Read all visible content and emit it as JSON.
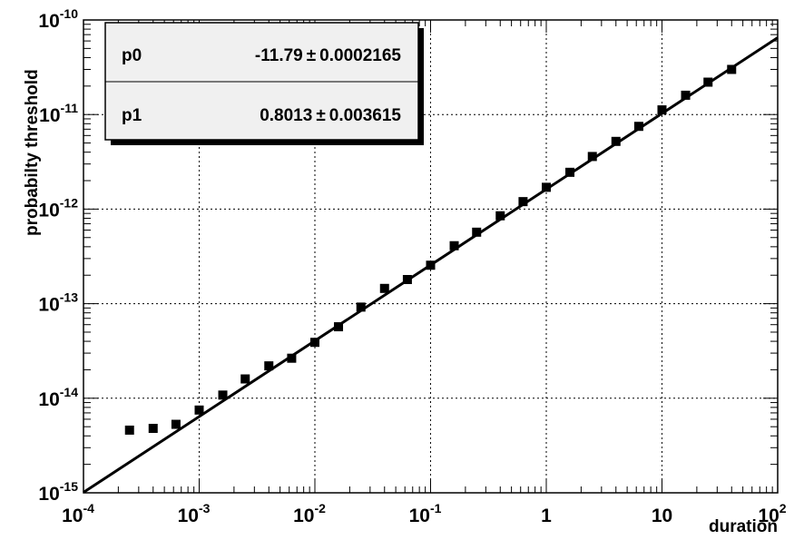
{
  "chart_data": {
    "type": "scatter",
    "xlabel": "duration",
    "ylabel": "probabilty threshold",
    "x_scale": "log",
    "y_scale": "log",
    "xlim": [
      0.0001,
      100
    ],
    "ylim": [
      1e-15,
      1e-10
    ],
    "grid": true,
    "x_ticks": [
      {
        "base": "10",
        "exp": "-4",
        "value": 0.0001
      },
      {
        "base": "10",
        "exp": "-3",
        "value": 0.001
      },
      {
        "base": "10",
        "exp": "-2",
        "value": 0.01
      },
      {
        "base": "10",
        "exp": "-1",
        "value": 0.1
      },
      {
        "base": "1",
        "exp": "",
        "value": 1
      },
      {
        "base": "10",
        "exp": "",
        "value": 10
      },
      {
        "base": "10",
        "exp": "2",
        "value": 100
      }
    ],
    "y_ticks": [
      {
        "base": "10",
        "exp": "-15",
        "value": 1e-15
      },
      {
        "base": "10",
        "exp": "-14",
        "value": 1e-14
      },
      {
        "base": "10",
        "exp": "-13",
        "value": 1e-13
      },
      {
        "base": "10",
        "exp": "-12",
        "value": 1e-12
      },
      {
        "base": "10",
        "exp": "-11",
        "value": 1e-11
      },
      {
        "base": "10",
        "exp": "-10",
        "value": 1e-10
      }
    ],
    "series": [
      {
        "points": [
          [
            0.00025,
            4.6e-15
          ],
          [
            0.0004,
            4.8e-15
          ],
          [
            0.00063,
            5.3e-15
          ],
          [
            0.001,
            7.5e-15
          ],
          [
            0.0016,
            1.08e-14
          ],
          [
            0.0025,
            1.6e-14
          ],
          [
            0.004,
            2.2e-14
          ],
          [
            0.0063,
            2.65e-14
          ],
          [
            0.01,
            3.9e-14
          ],
          [
            0.016,
            5.7e-14
          ],
          [
            0.025,
            9.2e-14
          ],
          [
            0.04,
            1.45e-13
          ],
          [
            0.063,
            1.8e-13
          ],
          [
            0.1,
            2.55e-13
          ],
          [
            0.16,
            4.1e-13
          ],
          [
            0.25,
            5.7e-13
          ],
          [
            0.4,
            8.5e-13
          ],
          [
            0.63,
            1.2e-12
          ],
          [
            1,
            1.7e-12
          ],
          [
            1.6,
            2.45e-12
          ],
          [
            2.5,
            3.6e-12
          ],
          [
            4,
            5.2e-12
          ],
          [
            6.3,
            7.5e-12
          ],
          [
            10,
            1.12e-11
          ],
          [
            16,
            1.6e-11
          ],
          [
            25,
            2.2e-11
          ],
          [
            40,
            3e-11
          ]
        ]
      }
    ],
    "fit": {
      "p0": -11.79,
      "p1": 0.8013,
      "x_range": [
        0.0001,
        100
      ]
    },
    "stats_box": [
      {
        "name": "p0",
        "value": "-11.79",
        "pm": "±",
        "error": "0.0002165"
      },
      {
        "name": "p1",
        "value": "0.8013",
        "pm": "±",
        "error": "0.003615"
      }
    ]
  }
}
